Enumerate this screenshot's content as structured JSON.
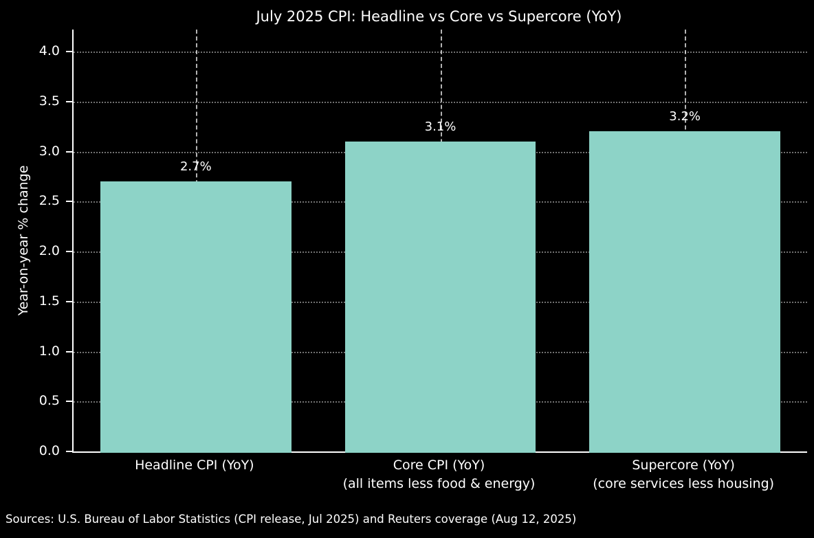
{
  "chart_data": {
    "type": "bar",
    "title": "July 2025 CPI: Headline vs Core vs Supercore (YoY)",
    "ylabel": "Year-on-year % change",
    "xlabel": "",
    "categories": [
      {
        "line1": "Headline CPI (YoY)",
        "line2": ""
      },
      {
        "line1": "Core CPI (YoY)",
        "line2": "(all items less food & energy)"
      },
      {
        "line1": "Supercore (YoY)",
        "line2": "(core services less housing)"
      }
    ],
    "values": [
      2.7,
      3.1,
      3.2
    ],
    "value_labels": [
      "2.7%",
      "3.1%",
      "3.2%"
    ],
    "ylim": [
      0,
      4.22
    ],
    "yticks": [
      0.0,
      0.5,
      1.0,
      1.5,
      2.0,
      2.5,
      3.0,
      3.5,
      4.0
    ],
    "ytick_labels": [
      "0.0",
      "0.5",
      "1.0",
      "1.5",
      "2.0",
      "2.5",
      "3.0",
      "3.5",
      "4.0"
    ],
    "bar_color": "#8dd3c7",
    "background_color": "#000000",
    "text_color": "#ffffff",
    "grid": {
      "horizontal": "dotted",
      "vertical": "dashed at bar centers"
    },
    "legend": "none",
    "source_note": "Sources: U.S. Bureau of Labor Statistics (CPI release, Jul 2025) and Reuters coverage (Aug 12, 2025)"
  }
}
